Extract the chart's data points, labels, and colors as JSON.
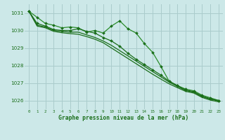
{
  "bg_color": "#cce8e8",
  "grid_color": "#aacccc",
  "line_color_dark": "#1a6e1a",
  "line_color_mid": "#2a8c2a",
  "xlabel": "Graphe pression niveau de la mer (hPa)",
  "ylim": [
    1025.5,
    1031.5
  ],
  "xlim": [
    -0.5,
    23.5
  ],
  "yticks": [
    1026,
    1027,
    1028,
    1029,
    1030,
    1031
  ],
  "xticks": [
    0,
    1,
    2,
    3,
    4,
    5,
    6,
    7,
    8,
    9,
    10,
    11,
    12,
    13,
    14,
    15,
    16,
    17,
    18,
    19,
    20,
    21,
    22,
    23
  ],
  "series1": [
    1031.1,
    1030.75,
    1030.4,
    1030.3,
    1030.15,
    1030.2,
    1030.15,
    1029.9,
    1030.0,
    1029.85,
    1030.25,
    1030.55,
    1030.1,
    1029.85,
    1029.25,
    1028.75,
    1027.95,
    1027.1,
    1026.85,
    1026.65,
    1026.55,
    1026.3,
    1026.15,
    1026.0
  ],
  "series2": [
    1031.1,
    1030.4,
    1030.25,
    1030.05,
    1030.0,
    1030.0,
    1030.1,
    1029.95,
    1029.85,
    1029.6,
    1029.4,
    1029.1,
    1028.7,
    1028.35,
    1028.05,
    1027.75,
    1027.45,
    1027.1,
    1026.85,
    1026.6,
    1026.5,
    1026.25,
    1026.1,
    1026.0
  ],
  "series3": [
    1031.1,
    1030.3,
    1030.2,
    1030.0,
    1029.95,
    1029.9,
    1029.9,
    1029.75,
    1029.6,
    1029.4,
    1029.15,
    1028.85,
    1028.55,
    1028.25,
    1027.95,
    1027.65,
    1027.35,
    1027.05,
    1026.8,
    1026.57,
    1026.47,
    1026.22,
    1026.07,
    1025.97
  ],
  "series4": [
    1031.1,
    1030.25,
    1030.15,
    1029.95,
    1029.87,
    1029.82,
    1029.78,
    1029.65,
    1029.5,
    1029.3,
    1029.0,
    1028.7,
    1028.4,
    1028.1,
    1027.8,
    1027.5,
    1027.22,
    1026.95,
    1026.73,
    1026.52,
    1026.42,
    1026.17,
    1026.02,
    1025.92
  ]
}
